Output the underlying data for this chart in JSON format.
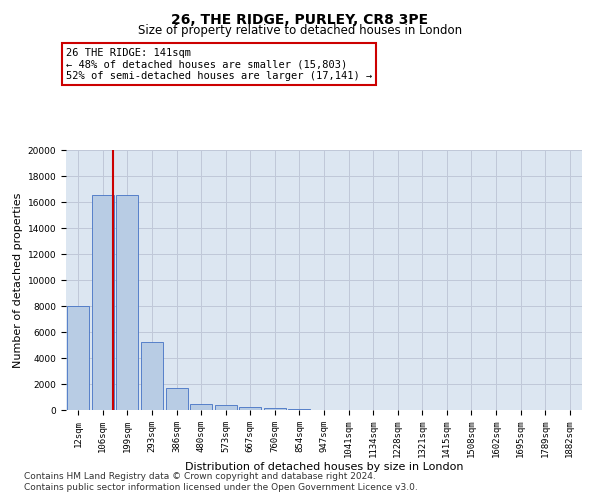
{
  "title_line1": "26, THE RIDGE, PURLEY, CR8 3PE",
  "title_line2": "Size of property relative to detached houses in London",
  "xlabel": "Distribution of detached houses by size in London",
  "ylabel": "Number of detached properties",
  "annotation_title": "26 THE RIDGE: 141sqm",
  "annotation_line1": "← 48% of detached houses are smaller (15,803)",
  "annotation_line2": "52% of semi-detached houses are larger (17,141) →",
  "footer_line1": "Contains HM Land Registry data © Crown copyright and database right 2024.",
  "footer_line2": "Contains public sector information licensed under the Open Government Licence v3.0.",
  "bar_labels": [
    "12sqm",
    "106sqm",
    "199sqm",
    "293sqm",
    "386sqm",
    "480sqm",
    "573sqm",
    "667sqm",
    "760sqm",
    "854sqm",
    "947sqm",
    "1041sqm",
    "1134sqm",
    "1228sqm",
    "1321sqm",
    "1415sqm",
    "1508sqm",
    "1602sqm",
    "1695sqm",
    "1789sqm",
    "1882sqm"
  ],
  "bar_values": [
    8000,
    16500,
    16500,
    5200,
    1700,
    500,
    350,
    200,
    150,
    100,
    0,
    0,
    0,
    0,
    0,
    0,
    0,
    0,
    0,
    0,
    0
  ],
  "bar_color": "#b8cce4",
  "bar_edge_color": "#4472c4",
  "grid_color": "#c0c8d8",
  "background_color": "#dce6f1",
  "vline_x_index": 1.4,
  "vline_color": "#cc0000",
  "ylim": [
    0,
    20000
  ],
  "yticks": [
    0,
    2000,
    4000,
    6000,
    8000,
    10000,
    12000,
    14000,
    16000,
    18000,
    20000
  ],
  "annotation_box_color": "#ffffff",
  "annotation_box_edge": "#cc0000",
  "title_fontsize": 10,
  "subtitle_fontsize": 8.5,
  "axis_label_fontsize": 8,
  "tick_fontsize": 6.5,
  "annotation_fontsize": 7.5,
  "footer_fontsize": 6.5
}
